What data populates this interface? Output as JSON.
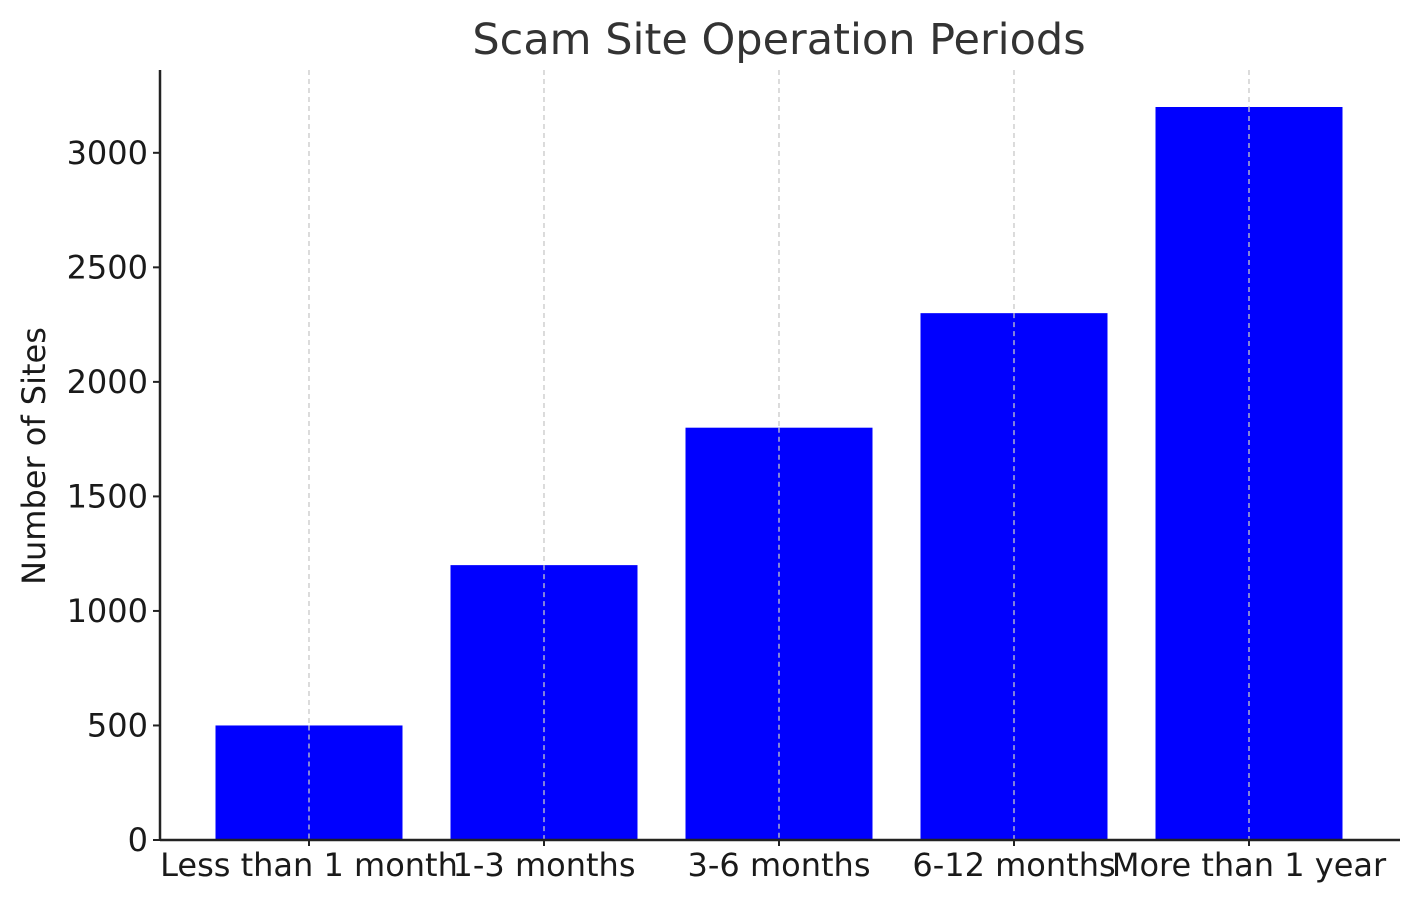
{
  "chart_data": {
    "type": "bar",
    "title": "Scam Site Operation Periods",
    "xlabel": "",
    "ylabel": "Number of Sites",
    "categories": [
      "Less than 1 month",
      "1-3 months",
      "3-6 months",
      "6-12 months",
      "More than 1 year"
    ],
    "values": [
      500,
      1200,
      1800,
      2300,
      3200
    ],
    "ylim": [
      0,
      3360
    ],
    "yticks": [
      0,
      500,
      1000,
      1500,
      2000,
      2500,
      3000
    ],
    "bar_color": "#0000ff",
    "grid": "vertical-dashed",
    "legend": "none"
  }
}
